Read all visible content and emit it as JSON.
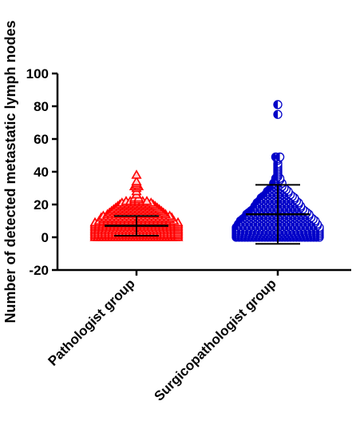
{
  "chart_data": {
    "type": "scatter",
    "title": "",
    "ylabel": "Number of detected metastatic lymph nodes",
    "xlabel": "",
    "ylim": [
      -20,
      100
    ],
    "yticks": [
      -20,
      0,
      20,
      40,
      60,
      80,
      100
    ],
    "ytick_labels": [
      "-20",
      "0",
      "20",
      "40",
      "60",
      "80",
      "100"
    ],
    "categories": [
      "Pathologist group",
      "Surgicopathologist group"
    ],
    "grid": false,
    "legend": "none",
    "series": [
      {
        "marker": "triangle",
        "color": "#ff0000",
        "mean": 7,
        "sd": 6,
        "values": [
          0,
          0,
          0,
          0,
          0,
          0,
          0,
          0,
          0,
          0,
          0,
          0,
          0,
          0,
          0,
          0,
          0,
          0,
          0,
          0,
          0,
          0,
          0,
          0,
          0,
          0,
          0,
          0,
          0,
          0,
          1,
          1,
          1,
          1,
          1,
          1,
          1,
          1,
          1,
          1,
          1,
          1,
          1,
          1,
          1,
          1,
          1,
          1,
          1,
          1,
          1,
          1,
          1,
          1,
          1,
          2,
          2,
          2,
          2,
          2,
          2,
          2,
          2,
          2,
          2,
          2,
          2,
          2,
          2,
          2,
          2,
          2,
          2,
          2,
          2,
          2,
          2,
          2,
          2,
          2,
          3,
          3,
          3,
          3,
          3,
          3,
          3,
          3,
          3,
          3,
          3,
          3,
          3,
          3,
          3,
          3,
          3,
          3,
          3,
          3,
          3,
          3,
          3,
          3,
          3,
          4,
          4,
          4,
          4,
          4,
          4,
          4,
          4,
          4,
          4,
          4,
          4,
          4,
          4,
          4,
          4,
          4,
          4,
          4,
          4,
          4,
          4,
          4,
          4,
          4,
          5,
          5,
          5,
          5,
          5,
          5,
          5,
          5,
          5,
          5,
          5,
          5,
          5,
          5,
          5,
          5,
          5,
          5,
          5,
          5,
          5,
          5,
          5,
          5,
          6,
          6,
          6,
          6,
          6,
          6,
          6,
          6,
          6,
          6,
          6,
          6,
          6,
          6,
          6,
          6,
          6,
          6,
          6,
          6,
          6,
          6,
          6,
          7,
          7,
          7,
          7,
          7,
          7,
          7,
          7,
          7,
          7,
          7,
          7,
          7,
          7,
          7,
          7,
          7,
          7,
          7,
          7,
          7,
          7,
          7,
          8,
          8,
          8,
          8,
          8,
          8,
          8,
          8,
          8,
          8,
          8,
          8,
          8,
          8,
          8,
          8,
          8,
          8,
          8,
          8,
          8,
          8,
          9,
          9,
          9,
          9,
          9,
          9,
          9,
          9,
          9,
          9,
          9,
          9,
          9,
          9,
          9,
          9,
          9,
          9,
          9,
          9,
          9,
          10,
          10,
          10,
          10,
          10,
          10,
          10,
          10,
          10,
          10,
          10,
          10,
          10,
          10,
          10,
          10,
          10,
          10,
          10,
          11,
          11,
          11,
          11,
          11,
          11,
          11,
          11,
          11,
          11,
          11,
          11,
          11,
          11,
          11,
          11,
          11,
          12,
          12,
          12,
          12,
          12,
          12,
          12,
          12,
          12,
          12,
          12,
          12,
          12,
          12,
          12,
          12,
          12,
          12,
          13,
          13,
          13,
          13,
          13,
          13,
          13,
          13,
          13,
          13,
          13,
          13,
          13,
          13,
          13,
          13,
          13,
          14,
          14,
          14,
          14,
          14,
          14,
          14,
          14,
          14,
          14,
          14,
          14,
          14,
          14,
          14,
          15,
          15,
          15,
          15,
          15,
          15,
          15,
          15,
          15,
          15,
          15,
          15,
          15,
          15,
          16,
          16,
          16,
          16,
          16,
          16,
          16,
          16,
          16,
          16,
          16,
          16,
          16,
          17,
          17,
          17,
          17,
          17,
          17,
          17,
          17,
          17,
          17,
          17,
          17,
          18,
          18,
          18,
          18,
          18,
          18,
          18,
          18,
          18,
          18,
          18,
          19,
          19,
          19,
          19,
          19,
          19,
          19,
          19,
          19,
          19,
          20,
          20,
          20,
          20,
          20,
          20,
          20,
          20,
          20,
          21,
          21,
          21,
          21,
          21,
          21,
          21,
          21,
          22,
          22,
          22,
          22,
          22,
          22,
          23,
          23,
          24,
          24,
          26,
          28,
          30,
          31,
          31,
          32,
          33,
          34,
          38
        ]
      },
      {
        "marker": "half-filled-circle",
        "color": "#0000c8",
        "mean": 14,
        "sd": 18,
        "values": [
          0,
          0,
          0,
          0,
          0,
          0,
          0,
          0,
          0,
          0,
          0,
          0,
          0,
          0,
          0,
          0,
          0,
          0,
          0,
          0,
          0,
          0,
          0,
          0,
          0,
          0,
          0,
          0,
          0,
          0,
          1,
          1,
          1,
          1,
          1,
          1,
          1,
          1,
          1,
          1,
          1,
          1,
          1,
          1,
          1,
          1,
          1,
          1,
          1,
          1,
          1,
          1,
          1,
          1,
          1,
          2,
          2,
          2,
          2,
          2,
          2,
          2,
          2,
          2,
          2,
          2,
          2,
          2,
          2,
          2,
          2,
          2,
          2,
          2,
          2,
          2,
          2,
          2,
          2,
          3,
          3,
          3,
          3,
          3,
          3,
          3,
          3,
          3,
          3,
          3,
          3,
          3,
          3,
          3,
          3,
          3,
          3,
          3,
          3,
          3,
          3,
          3,
          4,
          4,
          4,
          4,
          4,
          4,
          4,
          4,
          4,
          4,
          4,
          4,
          4,
          4,
          4,
          4,
          4,
          4,
          4,
          4,
          4,
          4,
          5,
          5,
          5,
          5,
          5,
          5,
          5,
          5,
          5,
          5,
          5,
          5,
          5,
          5,
          5,
          5,
          5,
          5,
          5,
          5,
          5,
          5,
          6,
          6,
          6,
          6,
          6,
          6,
          6,
          6,
          6,
          6,
          6,
          6,
          6,
          6,
          6,
          6,
          6,
          6,
          6,
          6,
          6,
          7,
          7,
          7,
          7,
          7,
          7,
          7,
          7,
          7,
          7,
          7,
          7,
          7,
          7,
          7,
          7,
          7,
          7,
          7,
          7,
          8,
          8,
          8,
          8,
          8,
          8,
          8,
          8,
          8,
          8,
          8,
          8,
          8,
          8,
          8,
          8,
          8,
          8,
          8,
          8,
          9,
          9,
          9,
          9,
          9,
          9,
          9,
          9,
          9,
          9,
          9,
          9,
          9,
          9,
          9,
          9,
          9,
          9,
          9,
          10,
          10,
          10,
          10,
          10,
          10,
          10,
          10,
          10,
          10,
          10,
          10,
          10,
          10,
          10,
          10,
          10,
          10,
          10,
          11,
          11,
          11,
          11,
          11,
          11,
          11,
          11,
          11,
          11,
          11,
          11,
          11,
          11,
          11,
          11,
          11,
          11,
          12,
          12,
          12,
          12,
          12,
          12,
          12,
          12,
          12,
          12,
          12,
          12,
          12,
          12,
          12,
          12,
          12,
          13,
          13,
          13,
          13,
          13,
          13,
          13,
          13,
          13,
          13,
          13,
          13,
          13,
          13,
          13,
          13,
          14,
          14,
          14,
          14,
          14,
          14,
          14,
          14,
          14,
          14,
          14,
          14,
          14,
          14,
          14,
          14,
          15,
          15,
          15,
          15,
          15,
          15,
          15,
          15,
          15,
          15,
          15,
          15,
          15,
          15,
          15,
          16,
          16,
          16,
          16,
          16,
          16,
          16,
          16,
          16,
          16,
          16,
          16,
          16,
          16,
          17,
          17,
          17,
          17,
          17,
          17,
          17,
          17,
          17,
          17,
          17,
          17,
          17,
          18,
          18,
          18,
          18,
          18,
          18,
          18,
          18,
          18,
          18,
          18,
          18,
          19,
          19,
          19,
          19,
          19,
          19,
          19,
          19,
          19,
          19,
          19,
          19,
          20,
          20,
          20,
          20,
          20,
          20,
          20,
          20,
          20,
          20,
          20,
          21,
          21,
          21,
          21,
          21,
          21,
          21,
          21,
          21,
          21,
          21,
          22,
          22,
          22,
          22,
          22,
          22,
          22,
          22,
          22,
          22,
          23,
          23,
          23,
          23,
          23,
          23,
          23,
          23,
          23,
          24,
          24,
          24,
          24,
          24,
          24,
          24,
          24,
          24,
          25,
          25,
          25,
          25,
          25,
          25,
          25,
          25,
          26,
          26,
          26,
          26,
          26,
          26,
          26,
          27,
          27,
          27,
          27,
          27,
          27,
          28,
          28,
          28,
          28,
          28,
          28,
          29,
          29,
          29,
          29,
          29,
          30,
          30,
          30,
          30,
          31,
          31,
          31,
          32,
          32,
          33,
          33,
          33,
          34,
          35,
          35,
          36,
          36,
          37,
          38,
          39,
          40,
          41,
          42,
          43,
          44,
          45,
          47,
          48,
          49,
          49,
          75,
          81
        ]
      }
    ]
  }
}
